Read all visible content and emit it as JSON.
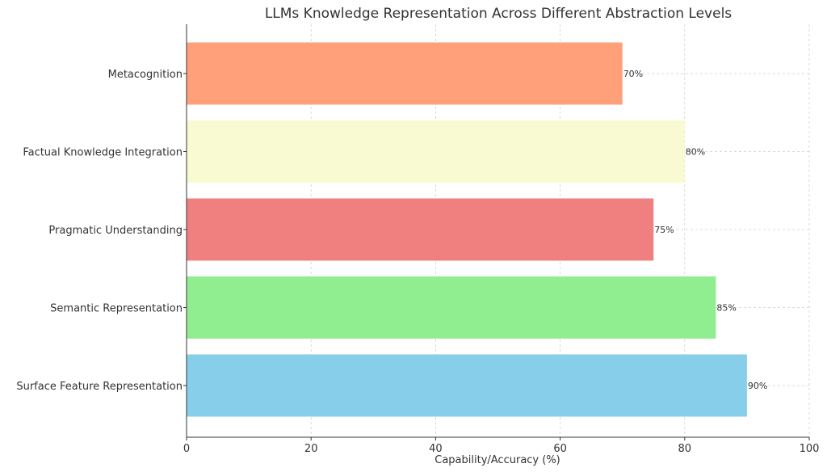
{
  "chart_data": {
    "type": "bar",
    "orientation": "horizontal",
    "title": "LLMs Knowledge Representation Across Different Abstraction Levels",
    "xlabel": "Capability/Accuracy (%)",
    "ylabel": "",
    "xlim": [
      0,
      100
    ],
    "xticks": [
      0,
      20,
      40,
      60,
      80,
      100
    ],
    "grid": true,
    "categories": [
      "Surface Feature Representation",
      "Semantic Representation",
      "Pragmatic Understanding",
      "Factual Knowledge Integration",
      "Metacognition"
    ],
    "values": [
      90,
      85,
      75,
      80,
      70
    ],
    "value_labels": [
      "90%",
      "85%",
      "75%",
      "80%",
      "70%"
    ],
    "colors": [
      "#87ceeb",
      "#90ee90",
      "#f08080",
      "#fafad2",
      "#ffa07a"
    ]
  }
}
